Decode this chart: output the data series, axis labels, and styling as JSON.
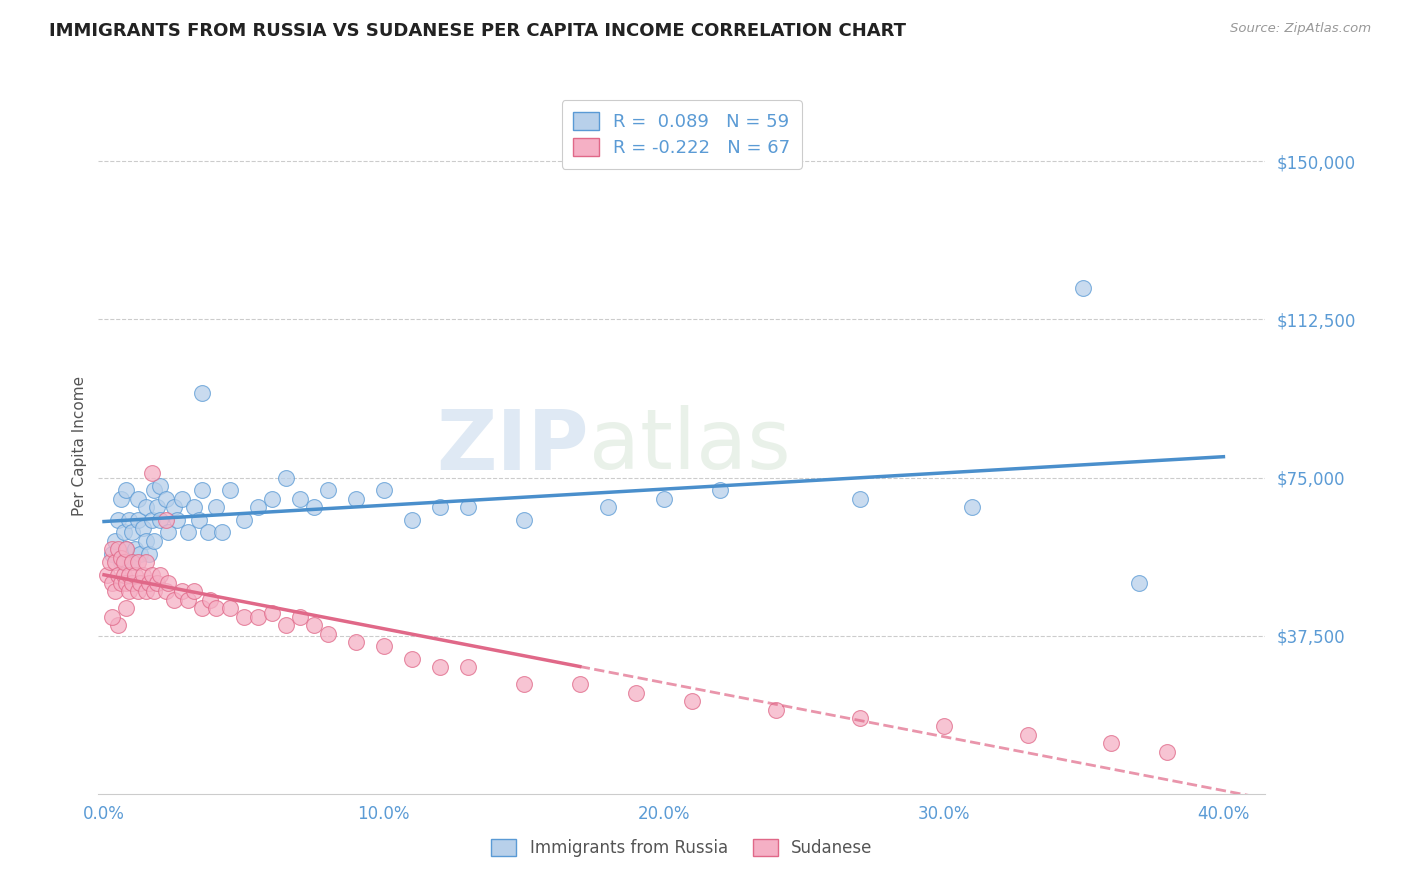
{
  "title": "IMMIGRANTS FROM RUSSIA VS SUDANESE PER CAPITA INCOME CORRELATION CHART",
  "source": "Source: ZipAtlas.com",
  "ylabel": "Per Capita Income",
  "xlim": [
    -0.002,
    0.415
  ],
  "ylim": [
    0,
    165000
  ],
  "yticks": [
    37500,
    75000,
    112500,
    150000
  ],
  "ytick_labels": [
    "$37,500",
    "$75,000",
    "$112,500",
    "$150,000"
  ],
  "xticks": [
    0.0,
    0.1,
    0.2,
    0.3,
    0.4
  ],
  "xtick_labels": [
    "0.0%",
    "10.0%",
    "20.0%",
    "30.0%",
    "40.0%"
  ],
  "blue_R": "0.089",
  "blue_N": "59",
  "pink_R": "-0.222",
  "pink_N": "67",
  "blue_fill": "#b8d0ea",
  "pink_fill": "#f5b0c5",
  "blue_edge": "#5a9ad5",
  "pink_edge": "#e06888",
  "blue_line": "#4a8fcc",
  "pink_line": "#e06888",
  "axis_color": "#5b9bd5",
  "title_color": "#222222",
  "label_blue": "Immigrants from Russia",
  "label_pink": "Sudanese",
  "blue_x": [
    0.003,
    0.004,
    0.005,
    0.006,
    0.006,
    0.007,
    0.008,
    0.008,
    0.009,
    0.01,
    0.01,
    0.011,
    0.012,
    0.012,
    0.013,
    0.014,
    0.015,
    0.015,
    0.016,
    0.017,
    0.018,
    0.018,
    0.019,
    0.02,
    0.02,
    0.022,
    0.023,
    0.025,
    0.026,
    0.028,
    0.03,
    0.032,
    0.034,
    0.035,
    0.037,
    0.04,
    0.042,
    0.045,
    0.05,
    0.055,
    0.06,
    0.065,
    0.07,
    0.075,
    0.08,
    0.09,
    0.1,
    0.11,
    0.13,
    0.15,
    0.18,
    0.22,
    0.27,
    0.31,
    0.035,
    0.12,
    0.2,
    0.35,
    0.37
  ],
  "blue_y": [
    57000,
    60000,
    65000,
    55000,
    70000,
    62000,
    58000,
    72000,
    65000,
    55000,
    62000,
    58000,
    65000,
    70000,
    57000,
    63000,
    60000,
    68000,
    57000,
    65000,
    72000,
    60000,
    68000,
    65000,
    73000,
    70000,
    62000,
    68000,
    65000,
    70000,
    62000,
    68000,
    65000,
    72000,
    62000,
    68000,
    62000,
    72000,
    65000,
    68000,
    70000,
    75000,
    70000,
    68000,
    72000,
    70000,
    72000,
    65000,
    68000,
    65000,
    68000,
    72000,
    70000,
    68000,
    95000,
    68000,
    70000,
    120000,
    50000
  ],
  "pink_x": [
    0.001,
    0.002,
    0.003,
    0.003,
    0.004,
    0.004,
    0.005,
    0.005,
    0.006,
    0.006,
    0.007,
    0.007,
    0.008,
    0.008,
    0.009,
    0.009,
    0.01,
    0.01,
    0.011,
    0.012,
    0.012,
    0.013,
    0.014,
    0.015,
    0.015,
    0.016,
    0.017,
    0.018,
    0.019,
    0.02,
    0.022,
    0.023,
    0.025,
    0.028,
    0.03,
    0.032,
    0.035,
    0.038,
    0.04,
    0.045,
    0.05,
    0.055,
    0.06,
    0.065,
    0.07,
    0.075,
    0.08,
    0.09,
    0.1,
    0.11,
    0.12,
    0.13,
    0.15,
    0.17,
    0.19,
    0.21,
    0.24,
    0.27,
    0.3,
    0.33,
    0.36,
    0.38,
    0.017,
    0.022,
    0.008,
    0.005,
    0.003
  ],
  "pink_y": [
    52000,
    55000,
    50000,
    58000,
    48000,
    55000,
    52000,
    58000,
    50000,
    56000,
    52000,
    55000,
    50000,
    58000,
    52000,
    48000,
    55000,
    50000,
    52000,
    48000,
    55000,
    50000,
    52000,
    48000,
    55000,
    50000,
    52000,
    48000,
    50000,
    52000,
    48000,
    50000,
    46000,
    48000,
    46000,
    48000,
    44000,
    46000,
    44000,
    44000,
    42000,
    42000,
    43000,
    40000,
    42000,
    40000,
    38000,
    36000,
    35000,
    32000,
    30000,
    30000,
    26000,
    26000,
    24000,
    22000,
    20000,
    18000,
    16000,
    14000,
    12000,
    10000,
    76000,
    65000,
    44000,
    40000,
    42000
  ]
}
